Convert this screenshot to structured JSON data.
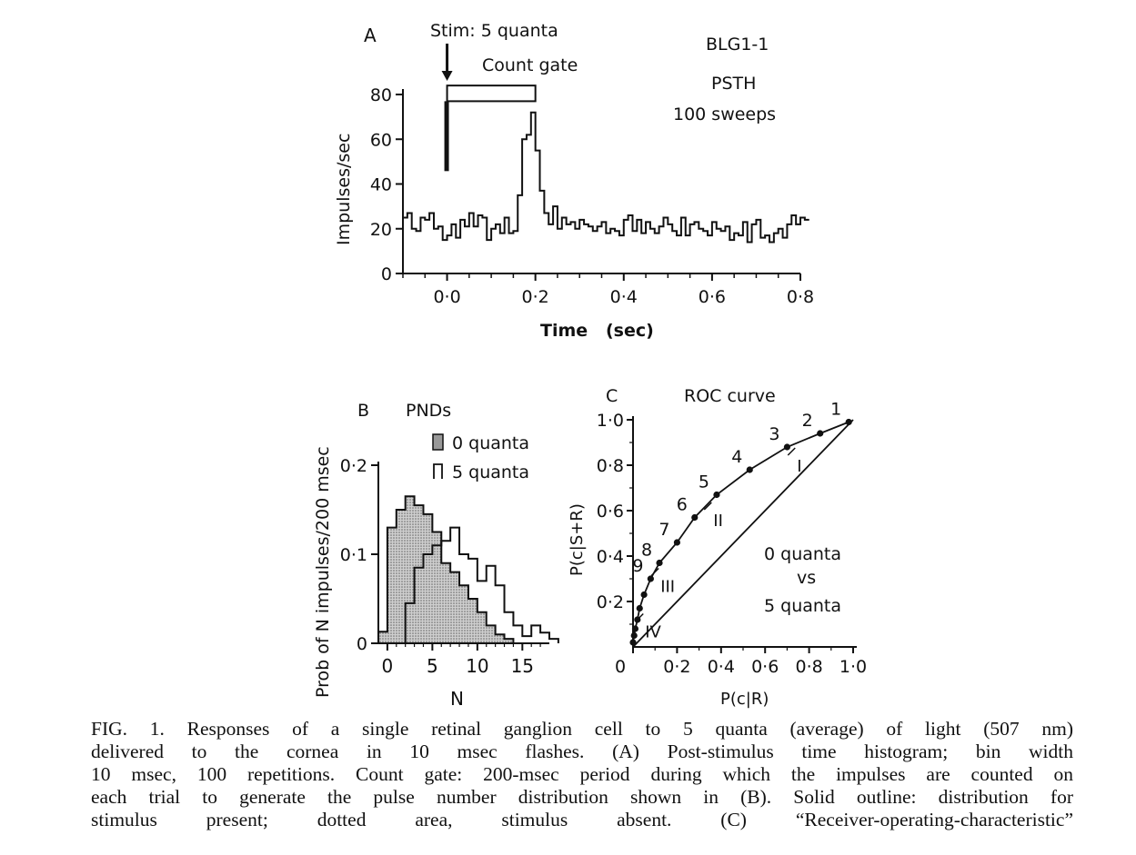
{
  "chart_data": [
    {
      "panel": "A",
      "type": "histogram-step",
      "annotations": {
        "stim": "Stim: 5 quanta",
        "gate": "Count gate",
        "cell": "BLG1-1",
        "kind": "PSTH",
        "sweeps": "100 sweeps"
      },
      "xlabel": "Time   (sec)",
      "ylabel": "Impulses/sec",
      "xticks": [
        "0·0",
        "0·2",
        "0·4",
        "0·6",
        "0·8"
      ],
      "xtick_values": [
        0,
        0.2,
        0.4,
        0.6,
        0.8
      ],
      "yticks": [
        "0",
        "20",
        "40",
        "60",
        "80"
      ],
      "ytick_values": [
        0,
        20,
        40,
        60,
        80
      ],
      "xlim": [
        -0.1,
        0.8
      ],
      "ylim": [
        0,
        80
      ],
      "stim_time": 0.0,
      "gate_range": [
        0.0,
        0.2
      ],
      "bin_width": 0.01,
      "bin_start": -0.1,
      "values": [
        25,
        27,
        20,
        19,
        25,
        24,
        27,
        20,
        21,
        15,
        17,
        22,
        16,
        24,
        21,
        27,
        21,
        26,
        25,
        15,
        20,
        22,
        18,
        25,
        18,
        19,
        35,
        60,
        62,
        72,
        55,
        37,
        27,
        22,
        30,
        20,
        25,
        22,
        23,
        20,
        24,
        22,
        21,
        19,
        21,
        23,
        18,
        20,
        19,
        17,
        24,
        26,
        19,
        24,
        18,
        23,
        20,
        18,
        21,
        25,
        22,
        19,
        17,
        25,
        17,
        22,
        23,
        20,
        19,
        17,
        23,
        20,
        19,
        21,
        15,
        18,
        17,
        23,
        14,
        22,
        24,
        16,
        17,
        14,
        18,
        20,
        16,
        22,
        26,
        22,
        25,
        24
      ]
    },
    {
      "panel": "B",
      "type": "histogram-step",
      "title": "PNDs",
      "legend": [
        "0 quanta",
        "5 quanta"
      ],
      "xlabel": "N",
      "ylabel": "Prob of N impulses/200 msec",
      "xticks": [
        "0",
        "5",
        "10",
        "15"
      ],
      "xtick_values": [
        0,
        5,
        10,
        15
      ],
      "yticks": [
        "0",
        "0·1",
        "0·2"
      ],
      "ytick_values": [
        0,
        0.1,
        0.2
      ],
      "xlim": [
        -1,
        18
      ],
      "ylim": [
        0,
        0.2
      ],
      "series": [
        {
          "name": "0 quanta",
          "bin_start": -1,
          "fill": "#b8b8b8",
          "values": [
            0.013,
            0.13,
            0.15,
            0.165,
            0.155,
            0.145,
            0.125,
            0.09,
            0.08,
            0.065,
            0.05,
            0.035,
            0.02,
            0.01,
            0.005
          ]
        },
        {
          "name": "5 quanta",
          "bin_start": 1,
          "fill": "none",
          "values": [
            0.0,
            0.045,
            0.085,
            0.1,
            0.11,
            0.115,
            0.13,
            0.1,
            0.095,
            0.07,
            0.087,
            0.065,
            0.035,
            0.02,
            0.008,
            0.02,
            0.012,
            0.005
          ]
        }
      ]
    },
    {
      "panel": "C",
      "type": "line",
      "title": "ROC curve",
      "xlabel": "P(c|R)",
      "ylabel": "P(c|S+R)",
      "annotation": [
        "0 quanta",
        "vs",
        "5 quanta"
      ],
      "xticks": [
        "0",
        "0·2",
        "0·4",
        "0·6",
        "0·8",
        "1·0"
      ],
      "xtick_values": [
        0,
        0.2,
        0.4,
        0.6,
        0.8,
        1.0
      ],
      "yticks": [
        "0·2",
        "0·4",
        "0·6",
        "0·8",
        "1·0"
      ],
      "ytick_values": [
        0.2,
        0.4,
        0.6,
        0.8,
        1.0
      ],
      "xlim": [
        0,
        1
      ],
      "ylim": [
        0,
        1
      ],
      "points": [
        {
          "label": "1",
          "x": 0.98,
          "y": 0.99
        },
        {
          "label": "2",
          "x": 0.85,
          "y": 0.94
        },
        {
          "label": "3",
          "x": 0.7,
          "y": 0.88
        },
        {
          "label": "4",
          "x": 0.53,
          "y": 0.78
        },
        {
          "label": "5",
          "x": 0.38,
          "y": 0.67
        },
        {
          "label": "6",
          "x": 0.28,
          "y": 0.57
        },
        {
          "label": "7",
          "x": 0.2,
          "y": 0.46
        },
        {
          "label": "8",
          "x": 0.12,
          "y": 0.37
        },
        {
          "label": "9",
          "x": 0.08,
          "y": 0.3
        },
        {
          "label": "",
          "x": 0.05,
          "y": 0.23
        },
        {
          "label": "",
          "x": 0.03,
          "y": 0.17
        },
        {
          "label": "",
          "x": 0.02,
          "y": 0.12
        },
        {
          "label": "",
          "x": 0.01,
          "y": 0.08
        },
        {
          "label": "",
          "x": 0.005,
          "y": 0.05
        },
        {
          "label": "",
          "x": 0.0,
          "y": 0.02
        }
      ],
      "roman_marks": [
        {
          "label": "I",
          "x": 0.72,
          "y": 0.86
        },
        {
          "label": "II",
          "x": 0.34,
          "y": 0.62
        },
        {
          "label": "III",
          "x": 0.1,
          "y": 0.33
        },
        {
          "label": "IV",
          "x": 0.03,
          "y": 0.13
        }
      ],
      "chance_line": [
        [
          0,
          0
        ],
        [
          1,
          1
        ]
      ]
    }
  ],
  "caption": {
    "lines": [
      "FIG. 1. Responses of a single retinal ganglion cell to 5 quanta (average) of light (507 nm)",
      "delivered to the cornea in 10 msec flashes. (A) Post-stimulus time histogram; bin width",
      "10 msec, 100 repetitions. Count gate: 200-msec period during which the impulses are counted on",
      "each trial to generate the pulse number distribution shown in (B). Solid outline: distribution for",
      "stimulus present; dotted area, stimulus absent. (C) “Receiver-operating-characteristic”"
    ]
  }
}
